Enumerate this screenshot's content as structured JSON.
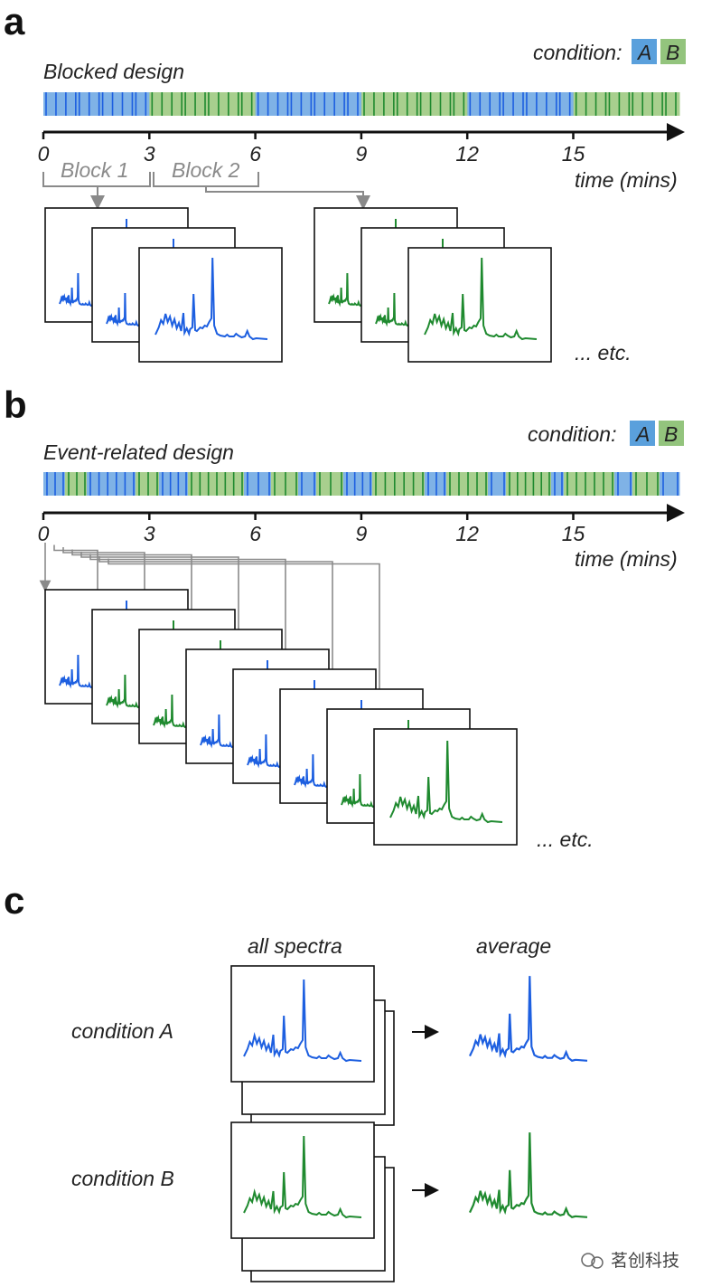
{
  "panels": {
    "a": {
      "letter": "a",
      "design_title": "Blocked design",
      "condition_label": "condition:",
      "cond_a": "A",
      "cond_b": "B",
      "time_axis_label": "time (mins)",
      "ticks": [
        "0",
        "3",
        "6",
        "9",
        "12",
        "15"
      ],
      "block_labels": [
        "Block 1",
        "Block 2"
      ],
      "etc": "... etc."
    },
    "b": {
      "letter": "b",
      "design_title": "Event-related design",
      "condition_label": "condition:",
      "cond_a": "A",
      "cond_b": "B",
      "time_axis_label": "time (mins)",
      "ticks": [
        "0",
        "3",
        "6",
        "9",
        "12",
        "15"
      ],
      "etc": "... etc."
    },
    "c": {
      "letter": "c",
      "col_all": "all spectra",
      "col_avg": "average",
      "row_a": "condition A",
      "row_b": "condition B"
    }
  },
  "colors": {
    "blue_band": "#7fb2e6",
    "green_band": "#a8cf8e",
    "blue_line": "#1d5fe0",
    "green_line": "#1f8a2f",
    "arrow_gray": "#8a8a8a",
    "box_a": "#5aa0dc",
    "box_b": "#93c47d"
  },
  "blocked_sequence": [
    "A",
    "B",
    "A",
    "B",
    "A",
    "B"
  ],
  "event_sequence": [
    "A",
    "B",
    "B",
    "A",
    "A",
    "A",
    "B",
    "B"
  ],
  "watermark": "茗创科技"
}
